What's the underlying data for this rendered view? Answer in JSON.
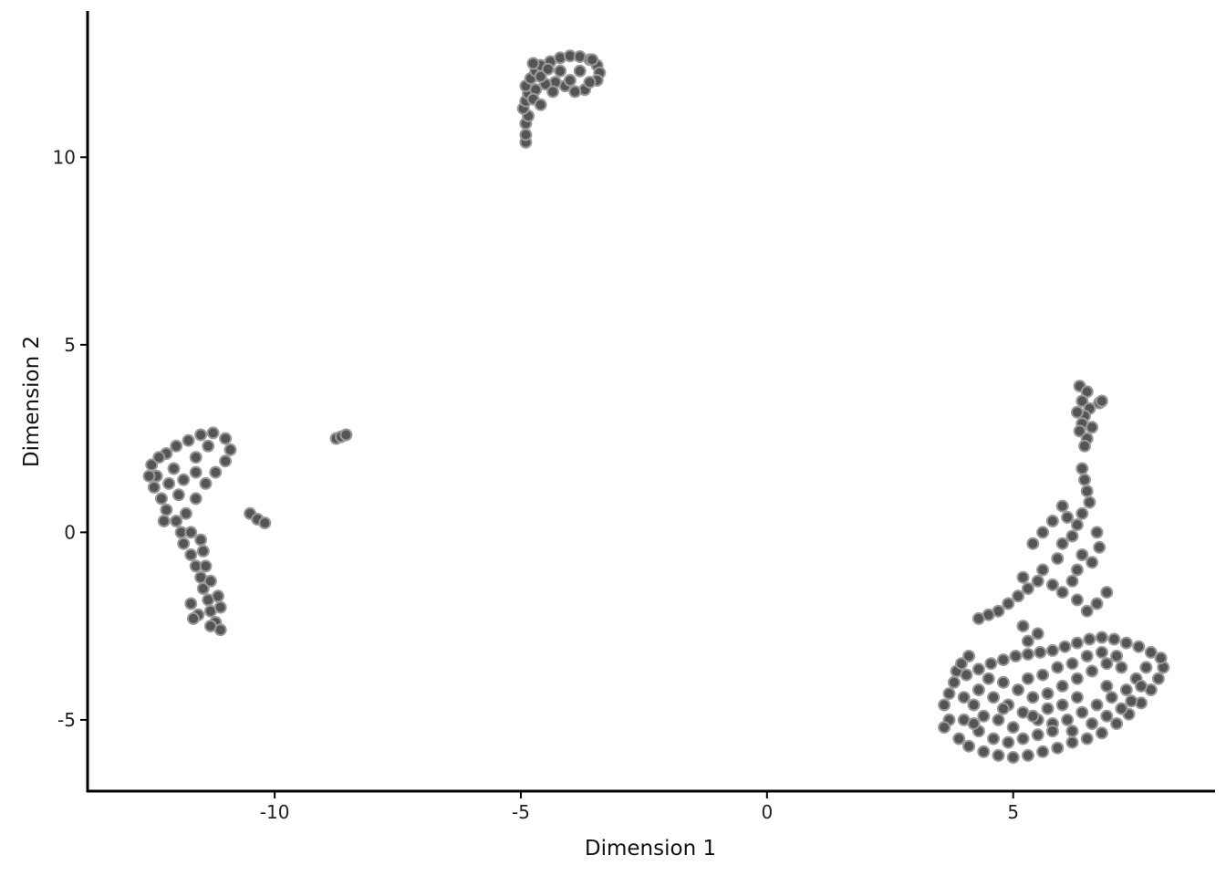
{
  "chart_data": {
    "type": "scatter",
    "title": "",
    "xlabel": "Dimension 1",
    "ylabel": "Dimension 2",
    "xlim": [
      -13.8,
      9.1
    ],
    "ylim": [
      -6.9,
      13.9
    ],
    "x_ticks": [
      {
        "value": -10,
        "label": "-10"
      },
      {
        "value": -5,
        "label": "-5"
      },
      {
        "value": 0,
        "label": "0"
      },
      {
        "value": 5,
        "label": "5"
      }
    ],
    "y_ticks": [
      {
        "value": -5,
        "label": "-5"
      },
      {
        "value": 0,
        "label": "0"
      },
      {
        "value": 5,
        "label": "5"
      },
      {
        "value": 10,
        "label": "10"
      }
    ],
    "grid": false,
    "legend": "none",
    "marker_fill": "#555555",
    "marker_stroke": "#999999",
    "points": [
      [
        -4.9,
        10.4
      ],
      [
        -4.9,
        10.6
      ],
      [
        -4.9,
        10.9
      ],
      [
        -4.85,
        11.1
      ],
      [
        -4.95,
        11.3
      ],
      [
        -4.9,
        11.5
      ],
      [
        -4.85,
        11.7
      ],
      [
        -4.9,
        11.9
      ],
      [
        -4.8,
        12.1
      ],
      [
        -4.7,
        12.3
      ],
      [
        -4.6,
        12.45
      ],
      [
        -4.4,
        12.55
      ],
      [
        -4.2,
        12.65
      ],
      [
        -4.0,
        12.7
      ],
      [
        -3.8,
        12.68
      ],
      [
        -3.6,
        12.6
      ],
      [
        -3.45,
        12.45
      ],
      [
        -3.4,
        12.25
      ],
      [
        -3.45,
        12.05
      ],
      [
        -3.7,
        11.8
      ],
      [
        -3.9,
        11.75
      ],
      [
        -4.1,
        11.9
      ],
      [
        -4.3,
        12.0
      ],
      [
        -4.5,
        11.95
      ],
      [
        -4.7,
        11.8
      ],
      [
        -4.6,
        12.15
      ],
      [
        -4.2,
        12.3
      ],
      [
        -3.8,
        12.3
      ],
      [
        -3.6,
        12.0
      ],
      [
        -4.0,
        12.05
      ],
      [
        -4.45,
        12.35
      ],
      [
        -4.75,
        11.55
      ],
      [
        -4.6,
        11.4
      ],
      [
        -4.75,
        12.5
      ],
      [
        -4.35,
        11.75
      ],
      [
        -3.55,
        12.6
      ],
      [
        -12.5,
        1.8
      ],
      [
        -12.4,
        1.5
      ],
      [
        -12.45,
        1.2
      ],
      [
        -12.3,
        0.9
      ],
      [
        -12.2,
        0.6
      ],
      [
        -12.0,
        0.3
      ],
      [
        -11.9,
        0.0
      ],
      [
        -11.85,
        -0.3
      ],
      [
        -11.7,
        -0.6
      ],
      [
        -11.6,
        -0.9
      ],
      [
        -11.5,
        -1.2
      ],
      [
        -11.45,
        -1.5
      ],
      [
        -11.35,
        -1.8
      ],
      [
        -11.3,
        -2.1
      ],
      [
        -11.2,
        -2.4
      ],
      [
        -11.1,
        -2.6
      ],
      [
        -11.3,
        -2.5
      ],
      [
        -11.55,
        -2.2
      ],
      [
        -11.7,
        -1.9
      ],
      [
        -11.65,
        -2.3
      ],
      [
        -11.1,
        -2.0
      ],
      [
        -11.15,
        -1.7
      ],
      [
        -11.3,
        -1.3
      ],
      [
        -11.4,
        -0.9
      ],
      [
        -11.45,
        -0.5
      ],
      [
        -11.7,
        0.0
      ],
      [
        -11.8,
        0.5
      ],
      [
        -11.6,
        0.9
      ],
      [
        -11.4,
        1.3
      ],
      [
        -11.2,
        1.6
      ],
      [
        -11.0,
        1.9
      ],
      [
        -10.9,
        2.2
      ],
      [
        -11.0,
        2.5
      ],
      [
        -11.25,
        2.65
      ],
      [
        -11.5,
        2.6
      ],
      [
        -11.75,
        2.45
      ],
      [
        -12.0,
        2.3
      ],
      [
        -12.2,
        2.1
      ],
      [
        -12.35,
        2.0
      ],
      [
        -12.05,
        1.7
      ],
      [
        -11.85,
        1.4
      ],
      [
        -11.6,
        2.0
      ],
      [
        -12.15,
        1.3
      ],
      [
        -11.95,
        1.0
      ],
      [
        -12.25,
        0.3
      ],
      [
        -11.6,
        1.6
      ],
      [
        -11.35,
        2.3
      ],
      [
        -12.55,
        1.5
      ],
      [
        -11.5,
        -0.2
      ],
      [
        -10.5,
        0.5
      ],
      [
        -10.35,
        0.35
      ],
      [
        -10.2,
        0.25
      ],
      [
        -8.75,
        2.5
      ],
      [
        -8.65,
        2.55
      ],
      [
        -8.55,
        2.6
      ],
      [
        6.35,
        3.9
      ],
      [
        6.5,
        3.75
      ],
      [
        6.4,
        3.5
      ],
      [
        6.55,
        3.3
      ],
      [
        6.45,
        3.1
      ],
      [
        6.4,
        2.9
      ],
      [
        6.35,
        2.7
      ],
      [
        6.5,
        2.5
      ],
      [
        6.45,
        2.3
      ],
      [
        6.75,
        3.45
      ],
      [
        6.3,
        3.2
      ],
      [
        6.6,
        2.8
      ],
      [
        6.4,
        1.7
      ],
      [
        6.45,
        1.4
      ],
      [
        6.5,
        1.1
      ],
      [
        6.55,
        0.8
      ],
      [
        6.4,
        0.5
      ],
      [
        6.3,
        0.2
      ],
      [
        6.2,
        -0.1
      ],
      [
        6.0,
        -0.3
      ],
      [
        6.7,
        0.0
      ],
      [
        6.75,
        -0.4
      ],
      [
        6.6,
        -0.8
      ],
      [
        6.4,
        -0.6
      ],
      [
        6.3,
        -1.0
      ],
      [
        6.2,
        -1.3
      ],
      [
        6.0,
        -1.6
      ],
      [
        5.8,
        -1.4
      ],
      [
        5.6,
        -1.0
      ],
      [
        5.5,
        -1.3
      ],
      [
        5.3,
        -1.5
      ],
      [
        5.1,
        -1.7
      ],
      [
        4.9,
        -1.9
      ],
      [
        4.7,
        -2.1
      ],
      [
        4.5,
        -2.2
      ],
      [
        4.3,
        -2.3
      ],
      [
        6.7,
        -1.9
      ],
      [
        6.5,
        -2.1
      ],
      [
        6.3,
        -1.8
      ],
      [
        6.9,
        -1.6
      ],
      [
        5.6,
        0.0
      ],
      [
        5.8,
        0.3
      ],
      [
        6.0,
        0.7
      ],
      [
        5.9,
        -0.7
      ],
      [
        5.2,
        -1.2
      ],
      [
        6.1,
        0.4
      ],
      [
        5.4,
        -0.3
      ],
      [
        6.8,
        3.5
      ],
      [
        3.6,
        -4.6
      ],
      [
        3.7,
        -4.3
      ],
      [
        3.8,
        -4.0
      ],
      [
        3.85,
        -3.7
      ],
      [
        3.95,
        -3.5
      ],
      [
        4.1,
        -3.3
      ],
      [
        3.7,
        -5.0
      ],
      [
        3.6,
        -5.2
      ],
      [
        3.9,
        -5.5
      ],
      [
        4.1,
        -5.7
      ],
      [
        4.4,
        -5.85
      ],
      [
        4.7,
        -5.95
      ],
      [
        5.0,
        -6.0
      ],
      [
        5.3,
        -5.95
      ],
      [
        5.6,
        -5.85
      ],
      [
        5.9,
        -5.75
      ],
      [
        6.2,
        -5.6
      ],
      [
        6.5,
        -5.5
      ],
      [
        6.8,
        -5.35
      ],
      [
        7.1,
        -5.1
      ],
      [
        7.35,
        -4.85
      ],
      [
        7.6,
        -4.55
      ],
      [
        7.8,
        -4.2
      ],
      [
        7.95,
        -3.9
      ],
      [
        8.05,
        -3.6
      ],
      [
        8.0,
        -3.35
      ],
      [
        7.8,
        -3.2
      ],
      [
        7.55,
        -3.05
      ],
      [
        7.3,
        -2.95
      ],
      [
        7.05,
        -2.85
      ],
      [
        6.8,
        -2.8
      ],
      [
        6.55,
        -2.85
      ],
      [
        6.3,
        -2.95
      ],
      [
        6.05,
        -3.05
      ],
      [
        5.8,
        -3.15
      ],
      [
        5.55,
        -3.2
      ],
      [
        5.3,
        -3.25
      ],
      [
        5.05,
        -3.3
      ],
      [
        4.8,
        -3.4
      ],
      [
        4.55,
        -3.5
      ],
      [
        4.3,
        -3.65
      ],
      [
        4.05,
        -3.8
      ],
      [
        4.3,
        -4.2
      ],
      [
        4.6,
        -4.4
      ],
      [
        4.9,
        -4.6
      ],
      [
        5.2,
        -4.8
      ],
      [
        5.5,
        -5.0
      ],
      [
        5.8,
        -5.1
      ],
      [
        6.1,
        -5.0
      ],
      [
        6.4,
        -4.8
      ],
      [
        6.7,
        -4.6
      ],
      [
        7.0,
        -4.4
      ],
      [
        7.3,
        -4.2
      ],
      [
        7.5,
        -3.9
      ],
      [
        7.2,
        -3.6
      ],
      [
        6.9,
        -3.5
      ],
      [
        6.6,
        -3.7
      ],
      [
        6.3,
        -3.9
      ],
      [
        6.0,
        -4.1
      ],
      [
        5.7,
        -4.3
      ],
      [
        5.4,
        -4.4
      ],
      [
        5.1,
        -4.2
      ],
      [
        4.8,
        -4.0
      ],
      [
        4.5,
        -3.9
      ],
      [
        4.2,
        -4.6
      ],
      [
        4.0,
        -5.0
      ],
      [
        4.3,
        -5.3
      ],
      [
        4.6,
        -5.5
      ],
      [
        4.9,
        -5.6
      ],
      [
        5.2,
        -5.5
      ],
      [
        5.5,
        -5.4
      ],
      [
        5.8,
        -5.3
      ],
      [
        6.2,
        -5.3
      ],
      [
        6.6,
        -5.1
      ],
      [
        6.9,
        -4.9
      ],
      [
        7.2,
        -4.7
      ],
      [
        7.4,
        -4.5
      ],
      [
        7.7,
        -3.6
      ],
      [
        5.0,
        -5.2
      ],
      [
        4.7,
        -5.0
      ],
      [
        4.4,
        -4.9
      ],
      [
        5.6,
        -3.8
      ],
      [
        5.9,
        -3.6
      ],
      [
        6.2,
        -3.5
      ],
      [
        6.5,
        -3.3
      ],
      [
        6.8,
        -3.2
      ],
      [
        7.1,
        -3.3
      ],
      [
        5.3,
        -3.9
      ],
      [
        4.0,
        -4.4
      ],
      [
        7.6,
        -4.1
      ],
      [
        6.0,
        -4.6
      ],
      [
        5.4,
        -4.9
      ],
      [
        4.8,
        -4.7
      ],
      [
        6.3,
        -4.4
      ],
      [
        6.9,
        -4.1
      ],
      [
        5.7,
        -4.7
      ],
      [
        4.2,
        -5.1
      ],
      [
        5.2,
        -2.5
      ],
      [
        5.5,
        -2.7
      ],
      [
        5.3,
        -2.9
      ]
    ]
  }
}
